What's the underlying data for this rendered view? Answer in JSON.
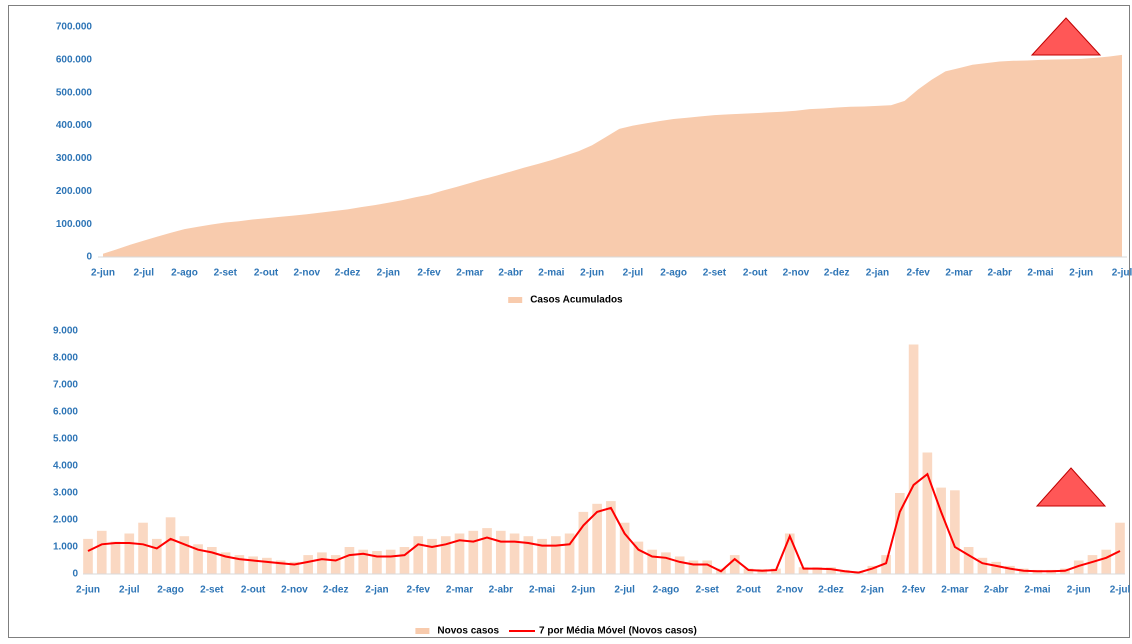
{
  "chart_data": [
    {
      "type": "area",
      "categories": [
        "2-jun",
        null,
        null,
        "2-jul",
        null,
        null,
        "2-ago",
        null,
        null,
        "2-set",
        null,
        null,
        "2-out",
        null,
        null,
        "2-nov",
        null,
        null,
        "2-dez",
        null,
        null,
        "2-jan",
        null,
        null,
        "2-fev",
        null,
        null,
        "2-mar",
        null,
        null,
        "2-abr",
        null,
        null,
        "2-mai",
        null,
        null,
        "2-jun",
        null,
        null,
        "2-jul",
        null,
        null,
        "2-ago",
        null,
        null,
        "2-set",
        null,
        null,
        "2-out",
        null,
        null,
        "2-nov",
        null,
        null,
        "2-dez",
        null,
        null,
        "2-jan",
        null,
        null,
        "2-fev",
        null,
        null,
        "2-mar",
        null,
        null,
        "2-abr",
        null,
        null,
        "2-mai",
        null,
        null,
        "2-jun",
        null,
        null,
        "2-jul"
      ],
      "series": [
        {
          "name": "Casos Acumulados",
          "color": "#f8cbad",
          "type": "area",
          "values": [
            10000,
            23000,
            37000,
            50000,
            62000,
            74000,
            85000,
            92000,
            99000,
            105000,
            109000,
            114000,
            118000,
            122000,
            126000,
            130000,
            135000,
            140000,
            145000,
            152000,
            158000,
            165000,
            173000,
            182000,
            190000,
            202000,
            213000,
            225000,
            237000,
            248000,
            260000,
            272000,
            283000,
            295000,
            308000,
            322000,
            340000,
            365000,
            390000,
            400000,
            407000,
            414000,
            420000,
            424000,
            428000,
            432000,
            434000,
            436000,
            438000,
            440000,
            442000,
            445000,
            450000,
            452000,
            455000,
            457000,
            458000,
            460000,
            462000,
            475000,
            510000,
            540000,
            565000,
            575000,
            585000,
            590000,
            595000,
            597000,
            598000,
            600000,
            601000,
            602000,
            603000,
            606000,
            610000,
            615000
          ]
        }
      ],
      "ylim": [
        0,
        700000
      ],
      "yticks": [
        0,
        {
          "value": 100000,
          "label": "100.000"
        },
        {
          "value": 200000,
          "label": "200.000"
        },
        {
          "value": 300000,
          "label": "300.000"
        },
        {
          "value": 400000,
          "label": "400.000"
        },
        {
          "value": 500000,
          "label": "500.000"
        },
        {
          "value": 600000,
          "label": "600.000"
        },
        {
          "value": 700000,
          "label": "700.000"
        }
      ],
      "grid": false,
      "legend": "bottom"
    },
    {
      "type": "combo",
      "categories": [
        "2-jun",
        null,
        null,
        "2-jul",
        null,
        null,
        "2-ago",
        null,
        null,
        "2-set",
        null,
        null,
        "2-out",
        null,
        null,
        "2-nov",
        null,
        null,
        "2-dez",
        null,
        null,
        "2-jan",
        null,
        null,
        "2-fev",
        null,
        null,
        "2-mar",
        null,
        null,
        "2-abr",
        null,
        null,
        "2-mai",
        null,
        null,
        "2-jun",
        null,
        null,
        "2-jul",
        null,
        null,
        "2-ago",
        null,
        null,
        "2-set",
        null,
        null,
        "2-out",
        null,
        null,
        "2-nov",
        null,
        null,
        "2-dez",
        null,
        null,
        "2-jan",
        null,
        null,
        "2-fev",
        null,
        null,
        "2-mar",
        null,
        null,
        "2-abr",
        null,
        null,
        "2-mai",
        null,
        null,
        "2-jun",
        null,
        null,
        "2-jul"
      ],
      "series": [
        {
          "name": "Novos casos",
          "color": "#f8cbad",
          "type": "bar",
          "values": [
            1300,
            1600,
            1200,
            1500,
            1900,
            1300,
            2100,
            1400,
            1100,
            1000,
            800,
            700,
            650,
            600,
            500,
            450,
            700,
            800,
            700,
            1000,
            900,
            850,
            900,
            1000,
            1400,
            1300,
            1400,
            1500,
            1600,
            1700,
            1600,
            1500,
            1400,
            1300,
            1400,
            1500,
            2300,
            2600,
            2700,
            1900,
            1200,
            900,
            800,
            650,
            500,
            500,
            200,
            700,
            200,
            180,
            200,
            1500,
            250,
            250,
            250,
            150,
            100,
            300,
            700,
            3000,
            8500,
            4500,
            3200,
            3100,
            1000,
            600,
            450,
            300,
            200,
            150,
            150,
            200,
            500,
            700,
            900,
            1900
          ]
        },
        {
          "name": "7 por Média Móvel (Novos casos)",
          "color": "#ff0000",
          "type": "line",
          "values": [
            850,
            1100,
            1150,
            1150,
            1100,
            950,
            1300,
            1100,
            900,
            800,
            650,
            550,
            500,
            450,
            400,
            350,
            450,
            550,
            500,
            700,
            750,
            650,
            650,
            700,
            1100,
            1000,
            1100,
            1250,
            1200,
            1350,
            1200,
            1200,
            1150,
            1050,
            1050,
            1100,
            1800,
            2300,
            2450,
            1500,
            900,
            650,
            600,
            450,
            350,
            350,
            100,
            550,
            150,
            120,
            150,
            1400,
            200,
            200,
            180,
            100,
            50,
            200,
            400,
            2300,
            3300,
            3700,
            2300,
            1000,
            700,
            400,
            300,
            200,
            120,
            100,
            100,
            120,
            300,
            450,
            600,
            850
          ]
        }
      ],
      "ylim": [
        0,
        9000
      ],
      "yticks": [
        0,
        {
          "value": 1000,
          "label": "1.000"
        },
        {
          "value": 2000,
          "label": "2.000"
        },
        {
          "value": 3000,
          "label": "3.000"
        },
        {
          "value": 4000,
          "label": "4.000"
        },
        {
          "value": 5000,
          "label": "5.000"
        },
        {
          "value": 6000,
          "label": "6.000"
        },
        {
          "value": 7000,
          "label": "7.000"
        },
        {
          "value": 8000,
          "label": "8.000"
        },
        {
          "value": 9000,
          "label": "9.000"
        }
      ],
      "grid": false,
      "legend": "bottom"
    }
  ]
}
